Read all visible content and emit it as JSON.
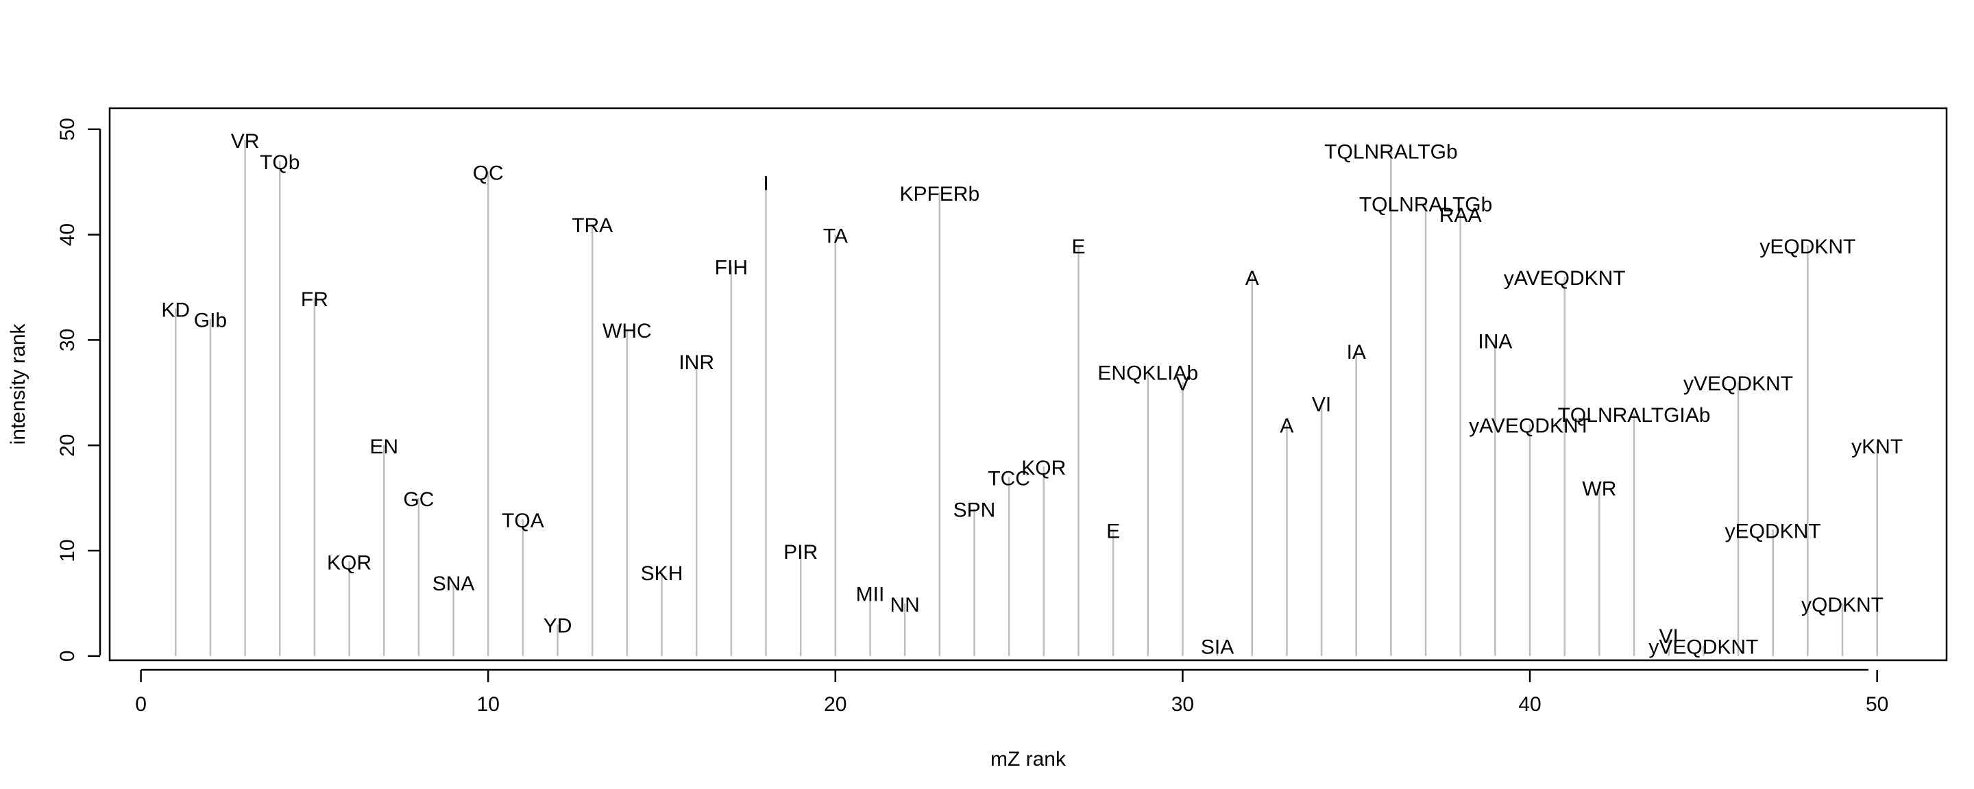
{
  "chart_data": {
    "type": "bar",
    "xlabel": "mZ rank",
    "ylabel": "intensity rank",
    "xlim": [
      -0.9,
      52
    ],
    "ylim": [
      -0.4,
      52
    ],
    "x_ticks": [
      0,
      10,
      20,
      30,
      40,
      50
    ],
    "y_ticks": [
      0,
      10,
      20,
      30,
      40,
      50
    ],
    "mark_color": "#bebebe",
    "points": [
      {
        "x": 1,
        "y": 33,
        "label": "KD"
      },
      {
        "x": 2,
        "y": 32,
        "label": "GIb"
      },
      {
        "x": 3,
        "y": 49,
        "label": "VR"
      },
      {
        "x": 4,
        "y": 47,
        "label": "TQb"
      },
      {
        "x": 5,
        "y": 34,
        "label": "FR"
      },
      {
        "x": 6,
        "y": 9,
        "label": "KQR"
      },
      {
        "x": 7,
        "y": 20,
        "label": "EN"
      },
      {
        "x": 8,
        "y": 15,
        "label": "GC"
      },
      {
        "x": 9,
        "y": 7,
        "label": "SNA"
      },
      {
        "x": 10,
        "y": 46,
        "label": "QC"
      },
      {
        "x": 11,
        "y": 13,
        "label": "TQA"
      },
      {
        "x": 12,
        "y": 3,
        "label": "YD"
      },
      {
        "x": 13,
        "y": 41,
        "label": "TRA"
      },
      {
        "x": 14,
        "y": 31,
        "label": "WHC"
      },
      {
        "x": 15,
        "y": 8,
        "label": "SKH"
      },
      {
        "x": 16,
        "y": 28,
        "label": "INR"
      },
      {
        "x": 17,
        "y": 37,
        "label": "FIH"
      },
      {
        "x": 18,
        "y": 45,
        "label": "I"
      },
      {
        "x": 19,
        "y": 10,
        "label": "PIR"
      },
      {
        "x": 20,
        "y": 40,
        "label": "TA"
      },
      {
        "x": 21,
        "y": 6,
        "label": "MII"
      },
      {
        "x": 22,
        "y": 5,
        "label": "NN"
      },
      {
        "x": 23,
        "y": 44,
        "label": "KPFERb"
      },
      {
        "x": 24,
        "y": 14,
        "label": "SPN"
      },
      {
        "x": 25,
        "y": 17,
        "label": "TCC"
      },
      {
        "x": 26,
        "y": 18,
        "label": "KQR"
      },
      {
        "x": 27,
        "y": 39,
        "label": "E"
      },
      {
        "x": 28,
        "y": 12,
        "label": "E"
      },
      {
        "x": 29,
        "y": 27,
        "label": "ENQKLIAb"
      },
      {
        "x": 30,
        "y": 26,
        "label": "V"
      },
      {
        "x": 31,
        "y": 1,
        "label": "SIA"
      },
      {
        "x": 32,
        "y": 36,
        "label": "A"
      },
      {
        "x": 33,
        "y": 22,
        "label": "A"
      },
      {
        "x": 34,
        "y": 24,
        "label": "VI"
      },
      {
        "x": 35,
        "y": 29,
        "label": "IA"
      },
      {
        "x": 36,
        "y": 48,
        "label": "TQLNRALTGb"
      },
      {
        "x": 37,
        "y": 43,
        "label": "TQLNRALTGb"
      },
      {
        "x": 38,
        "y": 42,
        "label": "RAA"
      },
      {
        "x": 39,
        "y": 30,
        "label": "INA"
      },
      {
        "x": 40,
        "y": 22,
        "label": "yAVEQDKNT"
      },
      {
        "x": 41,
        "y": 36,
        "label": "yAVEQDKNT"
      },
      {
        "x": 42,
        "y": 16,
        "label": "WR"
      },
      {
        "x": 43,
        "y": 23,
        "label": "TQLNRALTGIAb"
      },
      {
        "x": 44,
        "y": 2,
        "label": "VI"
      },
      {
        "x": 45,
        "y": 1,
        "label": "yVEQDKNT"
      },
      {
        "x": 46,
        "y": 26,
        "label": "yVEQDKNT"
      },
      {
        "x": 47,
        "y": 12,
        "label": "yEQDKNT"
      },
      {
        "x": 48,
        "y": 39,
        "label": "yEQDKNT"
      },
      {
        "x": 49,
        "y": 5,
        "label": "yQDKNT"
      },
      {
        "x": 50,
        "y": 20,
        "label": "yKNT"
      }
    ]
  }
}
